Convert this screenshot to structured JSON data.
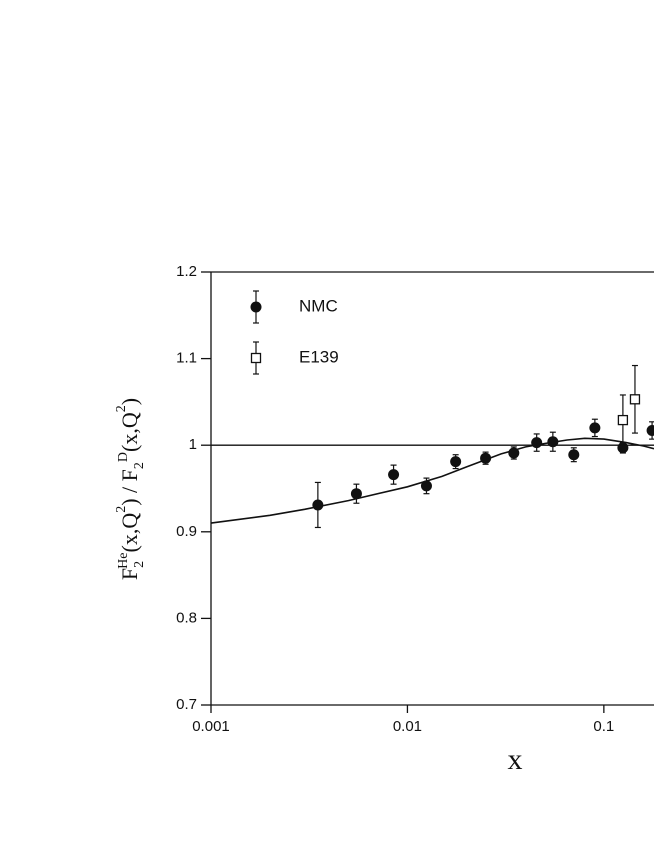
{
  "chart_data": {
    "type": "scatter",
    "x_label": "x",
    "y_label_parts": [
      "F",
      "2",
      "He",
      "(x,Q",
      "2",
      ") / F",
      "2",
      "D",
      "(x,Q",
      "2",
      ")"
    ],
    "log_x": true,
    "xlim": [
      0.001,
      0.18
    ],
    "xticks": [
      0.001,
      0.01,
      0.1
    ],
    "ylim": [
      0.7,
      1.2
    ],
    "yticks": [
      0.7,
      0.8,
      0.9,
      1,
      1.1,
      1.2
    ],
    "reference_line": 1,
    "series": [
      {
        "name": "NMC",
        "marker": "filled-circle",
        "color": "#111111",
        "x": [
          0.0035,
          0.0055,
          0.0085,
          0.0125,
          0.0176,
          0.025,
          0.0348,
          0.0455,
          0.055,
          0.0703,
          0.09,
          0.125,
          0.176
        ],
        "values": [
          0.931,
          0.944,
          0.966,
          0.953,
          0.981,
          0.985,
          0.991,
          1.003,
          1.004,
          0.989,
          1.02,
          0.997,
          1.017
        ],
        "errors": [
          0.026,
          0.011,
          0.011,
          0.009,
          0.008,
          0.007,
          0.007,
          0.01,
          0.011,
          0.008,
          0.01,
          0.006,
          0.01
        ]
      },
      {
        "name": "E139",
        "marker": "open-square",
        "color": "#111111",
        "x": [
          0.125,
          0.144
        ],
        "values": [
          1.029,
          1.053
        ],
        "errors": [
          0.029,
          0.039
        ]
      }
    ],
    "curve": {
      "x": [
        0.001,
        0.002,
        0.003,
        0.005,
        0.01,
        0.015,
        0.02,
        0.03,
        0.04,
        0.05,
        0.065,
        0.08,
        0.1,
        0.13,
        0.16,
        0.18
      ],
      "values": [
        0.91,
        0.919,
        0.926,
        0.936,
        0.952,
        0.964,
        0.975,
        0.99,
        0.998,
        1.002,
        1.006,
        1.008,
        1.007,
        1.003,
        0.999,
        0.996
      ]
    }
  }
}
